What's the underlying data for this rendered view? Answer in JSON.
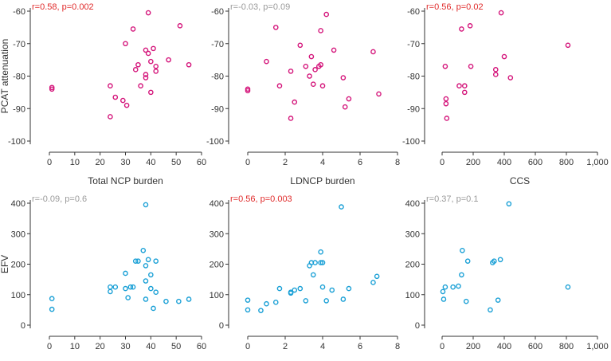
{
  "colors": {
    "magenta": "#d4147a",
    "cyan": "#1aa0d6",
    "significant_text": "#e02a2a",
    "nonsignificant_text": "#9a9a9a",
    "axis": "#333333"
  },
  "chart_data": [
    {
      "type": "scatter",
      "id": "pcat-vs-total-ncp",
      "xlabel": "Total NCP burden",
      "ylabel": "PCAT attenuation",
      "xlim": [
        0,
        60
      ],
      "ylim": [
        -100,
        -60
      ],
      "xticks": [
        0,
        10,
        20,
        30,
        40,
        50,
        60
      ],
      "xtick_labels": [
        "0",
        "10",
        "20",
        "30",
        "40",
        "50",
        "60"
      ],
      "yticks": [
        -100,
        -90,
        -80,
        -70,
        -60
      ],
      "ytick_labels": [
        "-100",
        "-90",
        "-80",
        "-70",
        "-60"
      ],
      "annotation": "r=0.58, p=0.002",
      "annotation_color": "significant",
      "point_color": "magenta",
      "points": [
        [
          1,
          -83.5
        ],
        [
          1,
          -84
        ],
        [
          24,
          -92.5
        ],
        [
          24,
          -83
        ],
        [
          26,
          -86.5
        ],
        [
          29,
          -87.5
        ],
        [
          30,
          -70
        ],
        [
          30.5,
          -89
        ],
        [
          33,
          -65.5
        ],
        [
          34,
          -78
        ],
        [
          35,
          -76.5
        ],
        [
          36,
          -83
        ],
        [
          38,
          -80.5
        ],
        [
          38,
          -79.5
        ],
        [
          38,
          -72
        ],
        [
          39,
          -60.5
        ],
        [
          39,
          -73
        ],
        [
          40,
          -75.5
        ],
        [
          40,
          -85
        ],
        [
          41,
          -71.5
        ],
        [
          42,
          -77
        ],
        [
          42,
          -78.5
        ],
        [
          47,
          -75
        ],
        [
          51.5,
          -64.5
        ],
        [
          55,
          -76.5
        ]
      ]
    },
    {
      "type": "scatter",
      "id": "pcat-vs-ldncp",
      "xlabel": "LDNCP burden",
      "ylabel": "",
      "xlim": [
        0,
        8
      ],
      "ylim": [
        -100,
        -60
      ],
      "xticks": [
        0,
        2,
        4,
        6,
        8
      ],
      "xtick_labels": [
        "0",
        "2",
        "4",
        "6",
        "8"
      ],
      "yticks": [
        -100,
        -90,
        -80,
        -70,
        -60
      ],
      "ytick_labels": [
        "-100",
        "-90",
        "-80",
        "-70",
        "-60"
      ],
      "annotation": "r=-0.03, p=0.09",
      "annotation_color": "nonsignificant",
      "point_color": "magenta",
      "points": [
        [
          0,
          -84
        ],
        [
          0,
          -84.5
        ],
        [
          1,
          -75.5
        ],
        [
          1.5,
          -65
        ],
        [
          1.7,
          -83
        ],
        [
          2.3,
          -78.5
        ],
        [
          2.3,
          -93
        ],
        [
          2.5,
          -88
        ],
        [
          2.8,
          -70.5
        ],
        [
          3.1,
          -77
        ],
        [
          3.3,
          -80
        ],
        [
          3.4,
          -74
        ],
        [
          3.5,
          -82.5
        ],
        [
          3.6,
          -78
        ],
        [
          3.8,
          -77
        ],
        [
          3.9,
          -76.5
        ],
        [
          3.9,
          -66
        ],
        [
          4,
          -83
        ],
        [
          4.2,
          -61
        ],
        [
          4.6,
          -72
        ],
        [
          5.1,
          -80.5
        ],
        [
          5.2,
          -89.5
        ],
        [
          5.4,
          -87
        ],
        [
          6.7,
          -72.5
        ],
        [
          7,
          -85.5
        ]
      ]
    },
    {
      "type": "scatter",
      "id": "pcat-vs-ccs",
      "xlabel": "CCS",
      "ylabel": "",
      "xlim": [
        0,
        1000
      ],
      "ylim": [
        -100,
        -60
      ],
      "xticks": [
        0,
        200,
        400,
        600,
        800,
        1000
      ],
      "xtick_labels": [
        "0",
        "200",
        "400",
        "600",
        "800",
        "1,000"
      ],
      "yticks": [
        -100,
        -90,
        -80,
        -70,
        -60
      ],
      "ytick_labels": [
        "-100",
        "-90",
        "-80",
        "-70",
        "-60"
      ],
      "annotation": "r=0.56, p=0.02",
      "annotation_color": "significant",
      "point_color": "magenta",
      "points": [
        [
          20,
          -77
        ],
        [
          25,
          -87
        ],
        [
          25,
          -88.5
        ],
        [
          30,
          -93
        ],
        [
          110,
          -83
        ],
        [
          125,
          -65.5
        ],
        [
          145,
          -83
        ],
        [
          145,
          -85
        ],
        [
          180,
          -64.5
        ],
        [
          185,
          -77
        ],
        [
          345,
          -78
        ],
        [
          345,
          -79.5
        ],
        [
          380,
          -60.5
        ],
        [
          400,
          -74
        ],
        [
          440,
          -80.5
        ],
        [
          810,
          -70.5
        ]
      ]
    },
    {
      "type": "scatter",
      "id": "efv-vs-total-ncp",
      "xlabel": "Total NCP burden",
      "ylabel": "EFV",
      "xlim": [
        0,
        60
      ],
      "ylim": [
        0,
        400
      ],
      "xticks": [
        0,
        10,
        20,
        30,
        40,
        50,
        60
      ],
      "xtick_labels": [
        "0",
        "10",
        "20",
        "30",
        "40",
        "50",
        "60"
      ],
      "yticks": [
        0,
        100,
        200,
        300,
        400
      ],
      "ytick_labels": [
        "0",
        "100",
        "200",
        "300",
        "400"
      ],
      "annotation": "r=-0.09, p=0.6",
      "annotation_color": "nonsignificant",
      "point_color": "cyan",
      "points": [
        [
          1,
          87
        ],
        [
          1,
          52
        ],
        [
          24,
          110
        ],
        [
          24,
          125
        ],
        [
          26,
          125
        ],
        [
          30,
          170
        ],
        [
          30,
          120
        ],
        [
          31,
          90
        ],
        [
          32,
          125
        ],
        [
          33,
          125
        ],
        [
          34,
          210
        ],
        [
          35,
          210
        ],
        [
          37,
          245
        ],
        [
          38,
          195
        ],
        [
          38,
          145
        ],
        [
          38,
          85
        ],
        [
          38,
          395
        ],
        [
          39,
          215
        ],
        [
          40,
          165
        ],
        [
          40,
          120
        ],
        [
          41,
          55
        ],
        [
          42,
          210
        ],
        [
          42,
          108
        ],
        [
          46,
          78
        ],
        [
          51,
          78
        ],
        [
          55,
          85
        ]
      ]
    },
    {
      "type": "scatter",
      "id": "efv-vs-ldncp",
      "xlabel": "LDNCP burden",
      "ylabel": "",
      "xlim": [
        0,
        8
      ],
      "ylim": [
        0,
        400
      ],
      "xticks": [
        0,
        2,
        4,
        6,
        8
      ],
      "xtick_labels": [
        "0",
        "2",
        "4",
        "6",
        "8"
      ],
      "yticks": [
        0,
        100,
        200,
        300,
        400
      ],
      "ytick_labels": [
        "0",
        "100",
        "200",
        "300",
        "400"
      ],
      "annotation": "r=0.56, p=0.003",
      "annotation_color": "significant",
      "point_color": "cyan",
      "points": [
        [
          0,
          82
        ],
        [
          0,
          50
        ],
        [
          0.7,
          48
        ],
        [
          1,
          70
        ],
        [
          1.5,
          75
        ],
        [
          1.7,
          120
        ],
        [
          2.3,
          105
        ],
        [
          2.3,
          108
        ],
        [
          2.5,
          115
        ],
        [
          2.8,
          120
        ],
        [
          3.1,
          80
        ],
        [
          3.3,
          195
        ],
        [
          3.4,
          205
        ],
        [
          3.5,
          165
        ],
        [
          3.6,
          205
        ],
        [
          3.9,
          205
        ],
        [
          3.9,
          240
        ],
        [
          4,
          205
        ],
        [
          4,
          125
        ],
        [
          4.2,
          80
        ],
        [
          4.5,
          115
        ],
        [
          5,
          388
        ],
        [
          5.1,
          85
        ],
        [
          5.4,
          120
        ],
        [
          6.7,
          140
        ],
        [
          6.9,
          160
        ]
      ]
    },
    {
      "type": "scatter",
      "id": "efv-vs-ccs",
      "xlabel": "CCS",
      "ylabel": "",
      "xlim": [
        0,
        1000
      ],
      "ylim": [
        0,
        400
      ],
      "xticks": [
        0,
        200,
        400,
        600,
        800,
        1000
      ],
      "xtick_labels": [
        "0",
        "200",
        "400",
        "600",
        "800",
        "1,000"
      ],
      "yticks": [
        0,
        100,
        200,
        300,
        400
      ],
      "ytick_labels": [
        "0",
        "100",
        "200",
        "300",
        "400"
      ],
      "annotation": "r=0.37, p=0.1",
      "annotation_color": "nonsignificant",
      "point_color": "cyan",
      "points": [
        [
          5,
          110
        ],
        [
          10,
          85
        ],
        [
          20,
          125
        ],
        [
          70,
          125
        ],
        [
          105,
          128
        ],
        [
          125,
          165
        ],
        [
          130,
          245
        ],
        [
          155,
          78
        ],
        [
          165,
          210
        ],
        [
          310,
          50
        ],
        [
          325,
          205
        ],
        [
          335,
          210
        ],
        [
          360,
          82
        ],
        [
          375,
          215
        ],
        [
          430,
          398
        ],
        [
          810,
          125
        ]
      ]
    }
  ]
}
